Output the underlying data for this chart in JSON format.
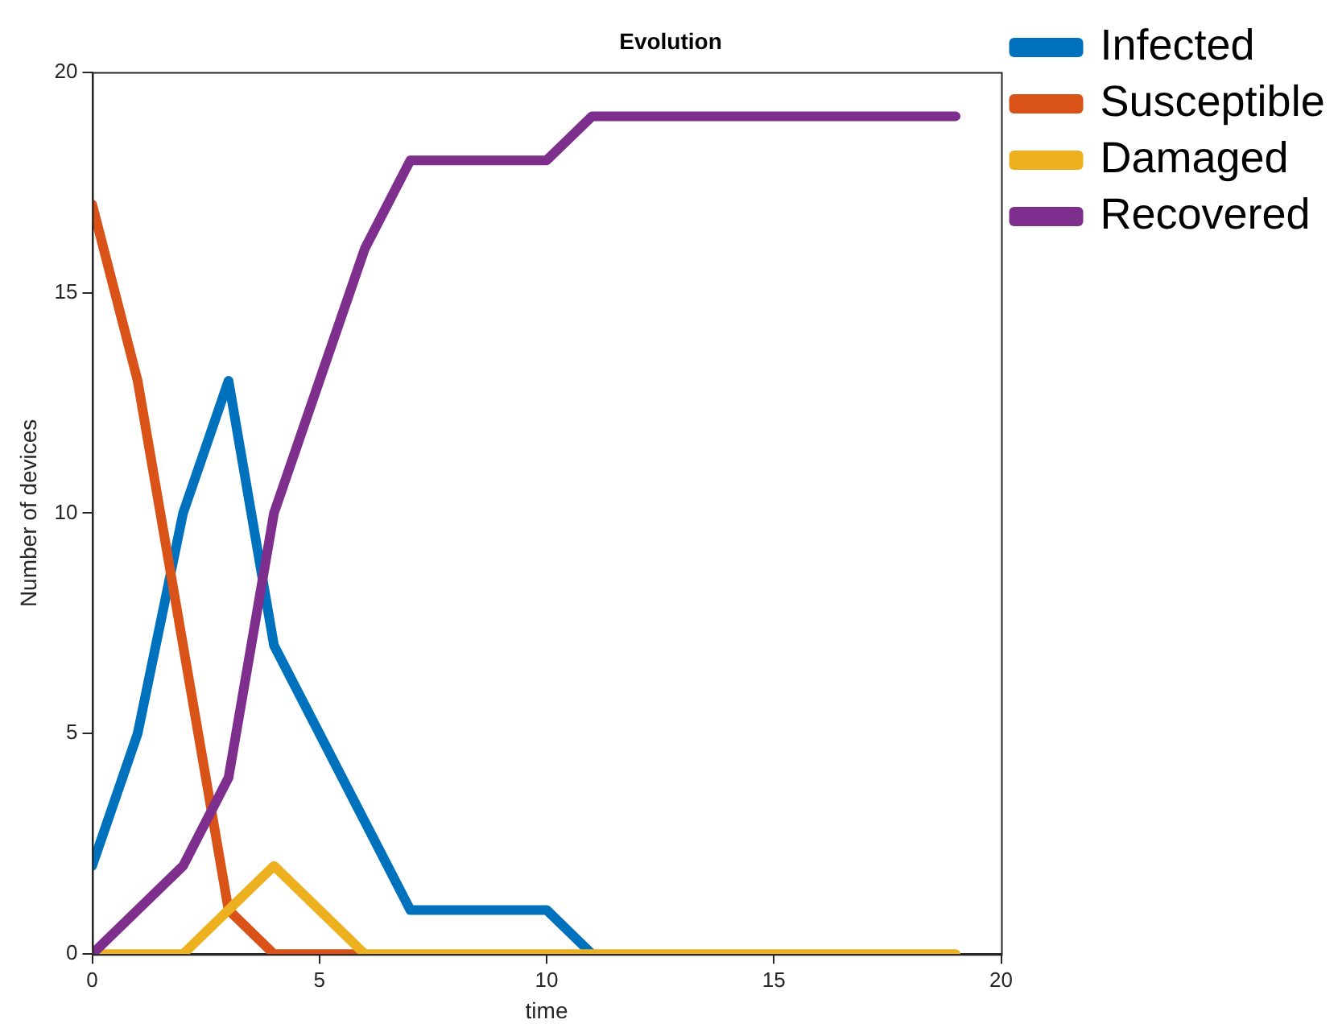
{
  "chart_data": {
    "type": "line",
    "title": "Evolution",
    "xlabel": "time",
    "ylabel": "Number of devices",
    "x": [
      0,
      1,
      2,
      3,
      4,
      5,
      6,
      7,
      8,
      9,
      10,
      11,
      12,
      13,
      14,
      15,
      16,
      17,
      18,
      19
    ],
    "xlim": [
      0,
      20
    ],
    "xticks": [
      0,
      5,
      10,
      15,
      20
    ],
    "ylim": [
      0,
      20
    ],
    "yticks": [
      0,
      5,
      10,
      15,
      20
    ],
    "grid": false,
    "legend": "top right",
    "marker": "none",
    "line_style": "solid",
    "series": [
      {
        "name": "Infected",
        "color": "#0072bd",
        "values": [
          2,
          5,
          10,
          13,
          7,
          5,
          3,
          1,
          1,
          1,
          1,
          0,
          null,
          null,
          null,
          null,
          null,
          null,
          null,
          null
        ]
      },
      {
        "name": "Susceptible",
        "color": "#d95319",
        "values": [
          17,
          13,
          7,
          1,
          0,
          0,
          0,
          null,
          null,
          null,
          null,
          null,
          null,
          null,
          null,
          null,
          null,
          null,
          null,
          null
        ]
      },
      {
        "name": "Damaged",
        "color": "#edb120",
        "values": [
          0,
          0,
          0,
          1,
          2,
          1,
          0,
          0,
          0,
          0,
          0,
          0,
          0,
          0,
          0,
          0,
          0,
          0,
          0,
          0
        ]
      },
      {
        "name": "Recovered",
        "color": "#7e2f8e",
        "values": [
          0,
          1,
          2,
          4,
          10,
          13,
          16,
          18,
          18,
          18,
          18,
          19,
          19,
          19,
          19,
          19,
          19,
          19,
          19,
          19
        ]
      }
    ]
  }
}
